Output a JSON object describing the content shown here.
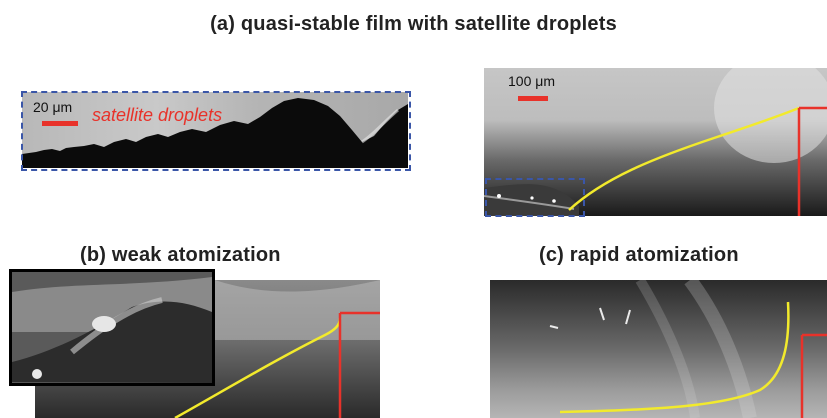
{
  "panels": {
    "a": {
      "title": "(a) quasi-stable film with satellite droplets",
      "scale_label": "100 μm"
    },
    "b": {
      "title": "(b) weak atomization"
    },
    "c": {
      "title": "(c) rapid atomization"
    }
  },
  "inset": {
    "scale_label": "20 μm",
    "annotation": "satellite droplets"
  },
  "colors": {
    "scale_bar": "#e8322a",
    "film_profile": "#f2ea2c",
    "frame_marker": "#e8322a",
    "dashed_box": "#3a56a8",
    "annotation_text": "#e8322a"
  }
}
